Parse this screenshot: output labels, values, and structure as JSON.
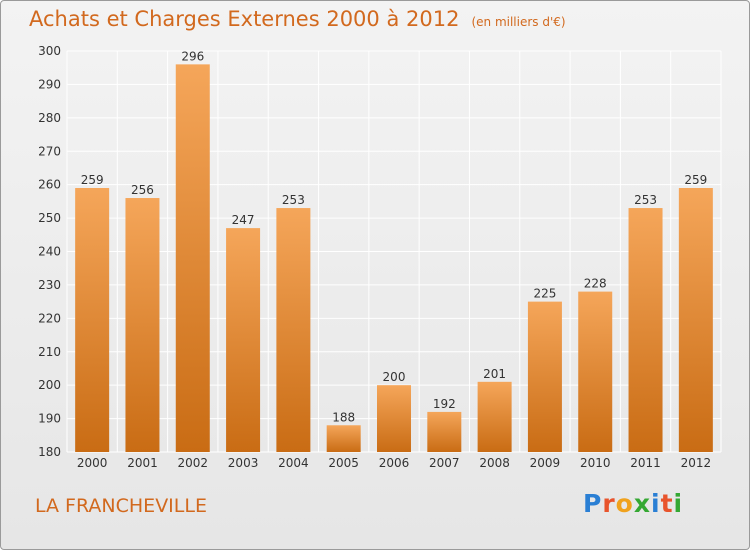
{
  "header": {
    "title": "Achats et Charges Externes 2000 à 2012",
    "unit": "(en milliers d'€)"
  },
  "footer": {
    "commune": "LA FRANCHEVILLE",
    "logo_text": "Proxiti",
    "logo_colors": [
      "#2a7fd4",
      "#e8542c",
      "#f0a21e",
      "#35a833",
      "#2a7fd4",
      "#e8542c",
      "#35a833"
    ]
  },
  "colors": {
    "accent": "#d2691e",
    "bar_top": "#f5a65a",
    "bar_bottom": "#c96c14",
    "grid": "#ffffff",
    "axis_text": "#333333"
  },
  "chart_data": {
    "type": "bar",
    "title": "Achats et Charges Externes 2000 à 2012",
    "subtitle": "(en milliers d'€)",
    "categories": [
      "2000",
      "2001",
      "2002",
      "2003",
      "2004",
      "2005",
      "2006",
      "2007",
      "2008",
      "2009",
      "2010",
      "2011",
      "2012"
    ],
    "values": [
      259,
      256,
      296,
      247,
      253,
      188,
      200,
      192,
      201,
      225,
      228,
      253,
      259
    ],
    "ylim": [
      180,
      300
    ],
    "yticks": [
      180,
      190,
      200,
      210,
      220,
      230,
      240,
      250,
      260,
      270,
      280,
      290,
      300
    ],
    "grid": true,
    "data_labels": true
  }
}
